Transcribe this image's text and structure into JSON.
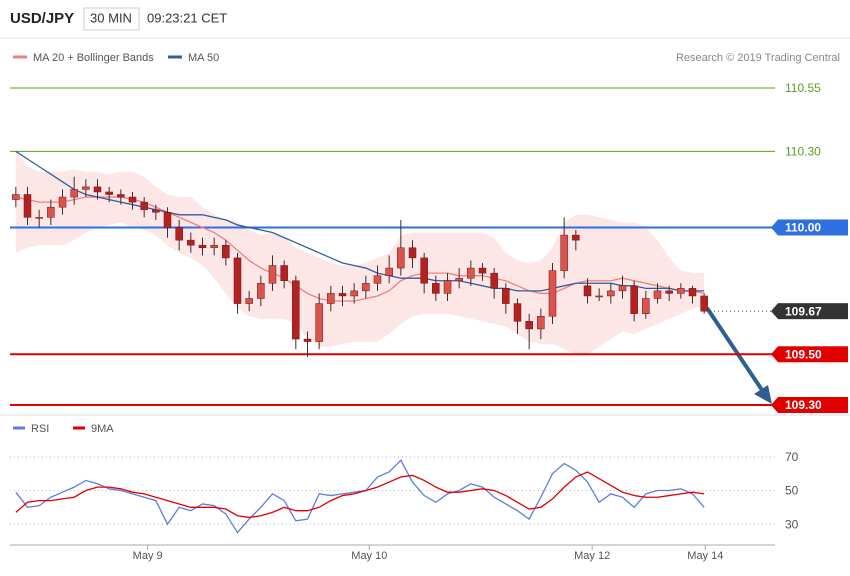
{
  "chart_data": {
    "type": "candlestick",
    "symbol": "USD/JPY",
    "interval": "30 MIN",
    "time": "09:23:21 CET",
    "copyright": "Research © 2019 Trading Central",
    "legend": {
      "ma20_label": "MA 20 + Bollinger Bands",
      "ma50_label": "MA 50"
    },
    "ma20_color": "#f08080",
    "band_color": "#fde0e0",
    "ma50_color": "#2c5f9e",
    "up_color": "#d9534f",
    "down_color": "#b22222",
    "xlim": [
      -0.5,
      59.5
    ],
    "xticks": [
      {
        "value": 11.3,
        "label": "May 9"
      },
      {
        "value": 30.3,
        "label": "May 10"
      },
      {
        "value": 49.4,
        "label": "May 12"
      },
      {
        "value": 59.1,
        "label": "May 14"
      }
    ],
    "ylim": [
      109.3,
      110.55
    ],
    "levels": [
      {
        "value": 110.55,
        "label": "110.55",
        "color": "#5a9e1e",
        "box": false,
        "dotted": false
      },
      {
        "value": 110.3,
        "label": "110.30",
        "color": "#5a9e1e",
        "box": false,
        "dotted": false
      },
      {
        "value": 110,
        "label": "110.00",
        "color": "#2f6fe0",
        "box": true,
        "dotted": false
      },
      {
        "value": 109.67,
        "label": "109.67",
        "color": "#333333",
        "box": true,
        "dotted": true
      },
      {
        "value": 109.5,
        "label": "109.50",
        "color": "#e00000",
        "box": true,
        "dotted": false
      },
      {
        "value": 109.3,
        "label": "109.30",
        "color": "#e00000",
        "box": true,
        "dotted": false
      }
    ],
    "open": [
      110.11,
      110.13,
      110.04,
      110.04,
      110.08,
      110.12,
      110.15,
      110.16,
      110.14,
      110.13,
      110.12,
      110.1,
      110.07,
      110.06,
      110.0,
      109.95,
      109.93,
      109.92,
      109.93,
      109.88,
      109.7,
      109.72,
      109.78,
      109.85,
      109.79,
      109.56,
      109.55,
      109.7,
      109.74,
      109.73,
      109.75,
      109.78,
      109.81,
      109.84,
      109.92,
      109.88,
      109.78,
      109.74,
      109.79,
      109.8,
      109.84,
      109.82,
      109.76,
      109.7,
      109.63,
      109.6,
      109.65,
      109.83,
      109.97,
      109.77,
      109.73,
      109.73,
      109.75,
      109.77,
      109.66,
      109.72,
      109.75,
      109.74,
      109.76,
      109.73
    ],
    "high": [
      110.16,
      110.16,
      110.07,
      110.11,
      110.15,
      110.2,
      110.19,
      110.19,
      110.16,
      110.15,
      110.14,
      110.12,
      110.09,
      110.08,
      110.03,
      109.98,
      109.96,
      109.96,
      109.95,
      109.9,
      109.75,
      109.81,
      109.89,
      109.87,
      109.81,
      109.59,
      109.74,
      109.77,
      109.77,
      109.78,
      109.81,
      109.85,
      109.89,
      110.03,
      109.95,
      109.9,
      109.81,
      109.82,
      109.84,
      109.87,
      109.86,
      109.84,
      109.78,
      109.72,
      109.66,
      109.68,
      109.86,
      110.04,
      109.99,
      109.8,
      109.76,
      109.78,
      109.81,
      109.79,
      109.75,
      109.78,
      109.77,
      109.78,
      109.77,
      109.74
    ],
    "low": [
      110.08,
      110.01,
      110.0,
      110.01,
      110.05,
      110.09,
      110.12,
      110.11,
      110.1,
      110.09,
      110.07,
      110.04,
      110.03,
      109.96,
      109.91,
      109.9,
      109.89,
      109.89,
      109.85,
      109.66,
      109.67,
      109.69,
      109.75,
      109.76,
      109.52,
      109.49,
      109.52,
      109.67,
      109.69,
      109.7,
      109.72,
      109.75,
      109.78,
      109.81,
      109.84,
      109.74,
      109.71,
      109.71,
      109.76,
      109.77,
      109.79,
      109.72,
      109.66,
      109.58,
      109.52,
      109.56,
      109.62,
      109.8,
      109.91,
      109.7,
      109.71,
      109.7,
      109.72,
      109.63,
      109.64,
      109.7,
      109.71,
      109.72,
      109.7,
      109.66
    ],
    "close": [
      110.13,
      110.04,
      110.04,
      110.08,
      110.12,
      110.15,
      110.16,
      110.14,
      110.13,
      110.12,
      110.1,
      110.07,
      110.06,
      110.0,
      109.95,
      109.93,
      109.92,
      109.93,
      109.88,
      109.7,
      109.72,
      109.78,
      109.85,
      109.79,
      109.56,
      109.55,
      109.7,
      109.74,
      109.73,
      109.75,
      109.78,
      109.81,
      109.84,
      109.92,
      109.88,
      109.78,
      109.74,
      109.79,
      109.8,
      109.84,
      109.82,
      109.76,
      109.7,
      109.63,
      109.6,
      109.65,
      109.83,
      109.97,
      109.95,
      109.73,
      109.73,
      109.75,
      109.77,
      109.66,
      109.72,
      109.75,
      109.74,
      109.76,
      109.73,
      109.67
    ],
    "ma20": [
      110.12,
      110.11,
      110.1,
      110.1,
      110.1,
      110.11,
      110.12,
      110.12,
      110.12,
      110.12,
      110.11,
      110.1,
      110.08,
      110.06,
      110.04,
      110.02,
      110.0,
      109.98,
      109.95,
      109.91,
      109.87,
      109.84,
      109.82,
      109.8,
      109.77,
      109.74,
      109.72,
      109.71,
      109.71,
      109.71,
      109.72,
      109.73,
      109.75,
      109.79,
      109.81,
      109.82,
      109.82,
      109.82,
      109.81,
      109.81,
      109.81,
      109.8,
      109.79,
      109.77,
      109.75,
      109.74,
      109.74,
      109.76,
      109.78,
      109.79,
      109.79,
      109.79,
      109.8,
      109.79,
      109.78,
      109.77,
      109.76,
      109.75,
      109.75,
      109.74
    ],
    "band_upper": [
      110.3,
      110.24,
      110.22,
      110.22,
      110.22,
      110.23,
      110.22,
      110.22,
      110.21,
      110.22,
      110.22,
      110.2,
      110.16,
      110.13,
      110.12,
      110.12,
      110.08,
      110.05,
      110.03,
      110.02,
      109.99,
      109.97,
      109.98,
      109.96,
      109.92,
      109.9,
      109.88,
      109.86,
      109.85,
      109.85,
      109.86,
      109.88,
      109.9,
      109.97,
      109.98,
      109.98,
      109.98,
      109.98,
      109.98,
      109.98,
      109.98,
      109.96,
      109.9,
      109.87,
      109.86,
      109.87,
      109.92,
      110.02,
      110.05,
      110.05,
      110.04,
      110.03,
      110.02,
      110.02,
      110.0,
      109.95,
      109.88,
      109.83,
      109.82,
      109.82
    ],
    "band_lower": [
      109.9,
      109.92,
      109.93,
      109.93,
      109.93,
      109.95,
      109.98,
      110.0,
      110.01,
      110.02,
      110.0,
      109.99,
      109.97,
      109.93,
      109.9,
      109.88,
      109.85,
      109.8,
      109.74,
      109.68,
      109.65,
      109.64,
      109.64,
      109.64,
      109.62,
      109.56,
      109.53,
      109.53,
      109.54,
      109.55,
      109.55,
      109.55,
      109.58,
      109.62,
      109.65,
      109.66,
      109.66,
      109.66,
      109.65,
      109.64,
      109.63,
      109.62,
      109.61,
      109.58,
      109.55,
      109.54,
      109.54,
      109.52,
      109.5,
      109.5,
      109.53,
      109.56,
      109.59,
      109.58,
      109.6,
      109.62,
      109.64,
      109.66,
      109.68,
      109.69
    ],
    "ma50": [
      110.3,
      110.27,
      110.24,
      110.21,
      110.18,
      110.15,
      110.13,
      110.12,
      110.11,
      110.1,
      110.09,
      110.08,
      110.07,
      110.06,
      110.05,
      110.05,
      110.05,
      110.04,
      110.03,
      110.01,
      110.0,
      109.99,
      109.98,
      109.96,
      109.94,
      109.92,
      109.9,
      109.88,
      109.86,
      109.85,
      109.84,
      109.82,
      109.81,
      109.8,
      109.8,
      109.8,
      109.79,
      109.79,
      109.79,
      109.78,
      109.77,
      109.76,
      109.76,
      109.75,
      109.75,
      109.75,
      109.76,
      109.77,
      109.78,
      109.78,
      109.78,
      109.78,
      109.77,
      109.77,
      109.76,
      109.76,
      109.76,
      109.75,
      109.75,
      109.75
    ],
    "rsi": {
      "ylim": [
        20,
        80
      ],
      "yticks": [
        70,
        50,
        30
      ],
      "series": [
        {
          "name": "RSI",
          "color": "#5b7fe0",
          "values": [
            49,
            40,
            41,
            46,
            49,
            52,
            56,
            54,
            51,
            50,
            48,
            46,
            44,
            30,
            40,
            38,
            42,
            41,
            36,
            25,
            33,
            40,
            48,
            44,
            32,
            33,
            48,
            47,
            48,
            49,
            50,
            58,
            61,
            68,
            55,
            47,
            43,
            48,
            50,
            54,
            52,
            46,
            42,
            38,
            33,
            46,
            60,
            66,
            62,
            55,
            43,
            48,
            46,
            40,
            48,
            50,
            50,
            51,
            48,
            40
          ]
        },
        {
          "name": "9MA",
          "color": "#e00000",
          "values": [
            37,
            43,
            44,
            44,
            45,
            46,
            50,
            52,
            52,
            51,
            49,
            48,
            46,
            44,
            42,
            40,
            40,
            40,
            39,
            35,
            34,
            35,
            37,
            40,
            38,
            38,
            40,
            44,
            47,
            48,
            50,
            52,
            55,
            58,
            59,
            56,
            52,
            49,
            49,
            50,
            51,
            50,
            47,
            43,
            39,
            40,
            45,
            52,
            58,
            61,
            57,
            53,
            49,
            47,
            46,
            46,
            47,
            48,
            49,
            48
          ]
        }
      ]
    }
  }
}
